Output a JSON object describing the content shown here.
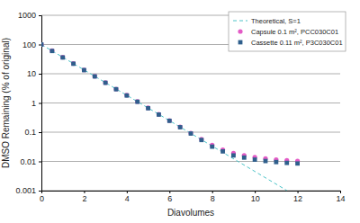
{
  "chart_data": {
    "type": "line",
    "x_label": "Diavolumes",
    "y_label": "DMSO Remaining (% of original)",
    "xlim": [
      0,
      14
    ],
    "xticks": [
      0,
      2,
      4,
      6,
      8,
      10,
      12,
      14
    ],
    "ylim": [
      0.001,
      1000
    ],
    "yticks": [
      0.001,
      0.01,
      0.1,
      1,
      10,
      100,
      1000
    ],
    "log": "y",
    "grid": true,
    "legend": "upper right",
    "series": [
      {
        "name": "Theoretical, S=1",
        "color": "#4cc3c7",
        "type": "line",
        "line_style": "dashed",
        "x": [
          0,
          2,
          4,
          6,
          8,
          10,
          11.5
        ],
        "values": [
          100,
          13.5,
          1.83,
          0.248,
          0.0335,
          0.00454,
          0.00101
        ]
      },
      {
        "name": "Capsule 0.1 m², PCC030C01",
        "color": "#e35bc6",
        "type": "scatter",
        "marker": "circle",
        "x": [
          0,
          0.5,
          1,
          1.5,
          2,
          2.5,
          3,
          3.5,
          4,
          4.5,
          5,
          5.5,
          6,
          6.5,
          7,
          7.5,
          8,
          8.5,
          9,
          9.5,
          10,
          10.5,
          11,
          11.5,
          12
        ],
        "values": [
          100,
          62,
          37,
          22.5,
          13.5,
          8.2,
          5,
          3,
          1.85,
          1.12,
          0.68,
          0.41,
          0.25,
          0.152,
          0.093,
          0.057,
          0.036,
          0.025,
          0.019,
          0.016,
          0.014,
          0.0125,
          0.0115,
          0.0108,
          0.0102
        ]
      },
      {
        "name": "Cassette 0.11 m², P3C030C01",
        "color": "#2f5f8c",
        "type": "scatter",
        "marker": "square",
        "x": [
          0,
          0.5,
          1,
          1.5,
          2,
          2.5,
          3,
          3.5,
          4,
          4.5,
          5,
          5.5,
          6,
          6.5,
          7,
          7.5,
          8,
          8.5,
          9,
          9.5,
          10,
          10.5,
          11,
          11.5,
          12
        ],
        "values": [
          100,
          60,
          36,
          22,
          13.3,
          8.1,
          4.9,
          2.95,
          1.8,
          1.1,
          0.66,
          0.4,
          0.245,
          0.148,
          0.09,
          0.054,
          0.032,
          0.022,
          0.016,
          0.0135,
          0.0115,
          0.0103,
          0.0095,
          0.0089,
          0.0085
        ]
      }
    ]
  }
}
